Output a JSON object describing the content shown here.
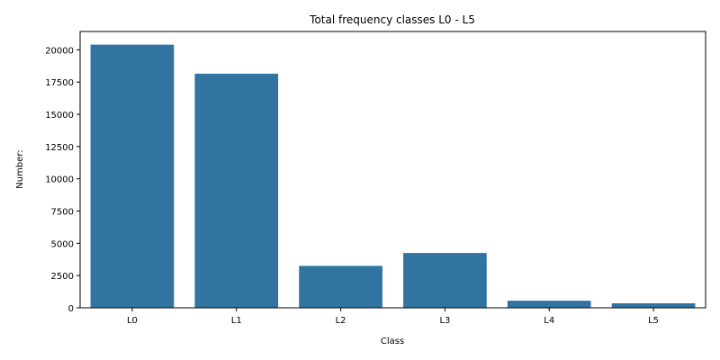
{
  "chart_data": {
    "type": "bar",
    "title": "Total frequency classes L0 - L5",
    "xlabel": "Class",
    "ylabel": "Number:",
    "categories": [
      "L0",
      "L1",
      "L2",
      "L3",
      "L4",
      "L5"
    ],
    "values": [
      20400,
      18150,
      3250,
      4250,
      550,
      350
    ],
    "ylim": [
      0,
      21420
    ],
    "yticks": [
      0,
      2500,
      5000,
      7500,
      10000,
      12500,
      15000,
      17500,
      20000
    ],
    "bar_color": "#3274a1",
    "grid": false,
    "legend": "none"
  }
}
